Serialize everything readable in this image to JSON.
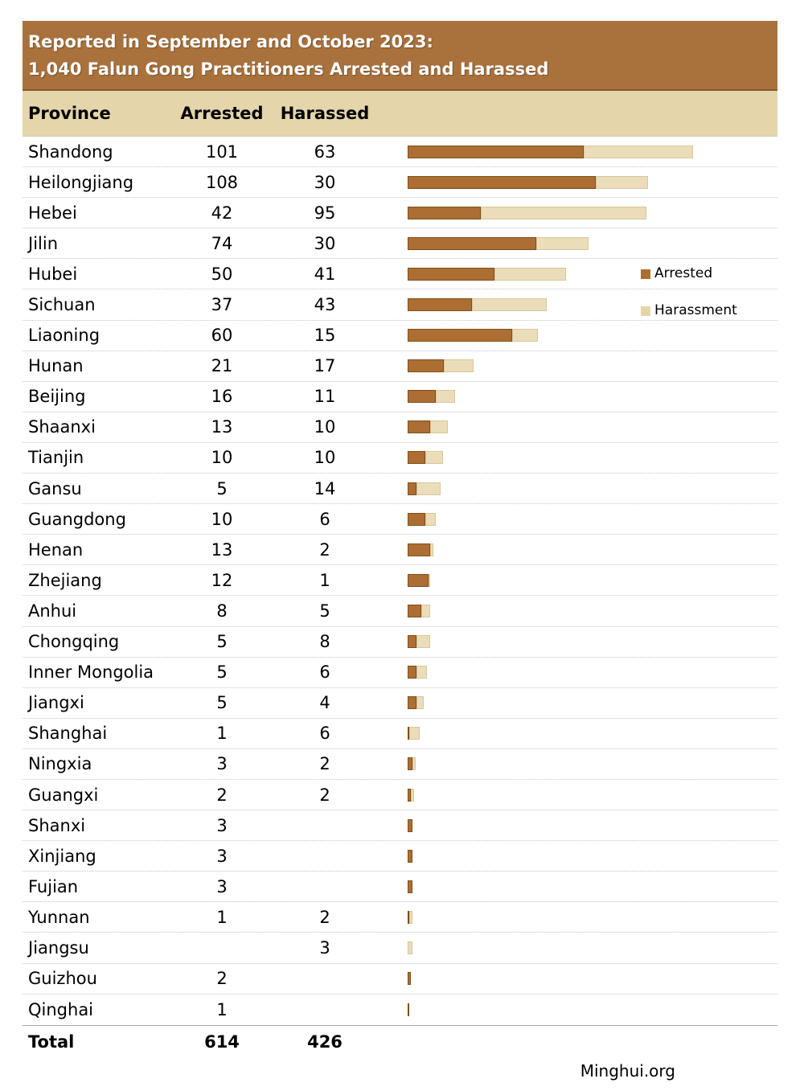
{
  "title": {
    "line1": "Reported in September and October 2023:",
    "line2": "1,040 Falun Gong Practitioners Arrested and Harassed"
  },
  "columns": {
    "province": "Province",
    "arrested": "Arrested",
    "harassed": "Harassed"
  },
  "legend": {
    "arrested": "Arrested",
    "harassment": "Harassment"
  },
  "total": {
    "label": "Total",
    "arrested": "614",
    "harassed": "426"
  },
  "footer": {
    "source": "Minghui.org"
  },
  "colors": {
    "header_bg": "#A9713C",
    "header_border": "#8A5C2A",
    "band_bg": "#E4D5AA",
    "title_text": "#FFFFFF",
    "arrested": "#AC6E33",
    "arrested_border": "#7E4F1D",
    "harassment": "#EBDDB9",
    "harassment_border": "#D8C69B"
  },
  "chart_data": {
    "type": "bar",
    "orientation": "horizontal",
    "stacked": true,
    "grid": "dotted-row-separators",
    "legend_position": "right-inside",
    "title": "Reported in September and October 2023: 1,040 Falun Gong Practitioners Arrested and Harassed",
    "categories": [
      "Shandong",
      "Heilongjiang",
      "Hebei",
      "Jilin",
      "Hubei",
      "Sichuan",
      "Liaoning",
      "Hunan",
      "Beijing",
      "Shaanxi",
      "Tianjin",
      "Gansu",
      "Guangdong",
      "Henan",
      "Zhejiang",
      "Anhui",
      "Chongqing",
      "Inner Mongolia",
      "Jiangxi",
      "Shanghai",
      "Ningxia",
      "Guangxi",
      "Shanxi",
      "Xinjiang",
      "Fujian",
      "Yunnan",
      "Jiangsu",
      "Guizhou",
      "Qinghai"
    ],
    "series": [
      {
        "name": "Arrested",
        "values": [
          101,
          108,
          42,
          74,
          50,
          37,
          60,
          21,
          16,
          13,
          10,
          5,
          10,
          13,
          12,
          8,
          5,
          5,
          5,
          1,
          3,
          2,
          3,
          3,
          3,
          1,
          null,
          2,
          1
        ]
      },
      {
        "name": "Harassment",
        "values": [
          63,
          30,
          95,
          30,
          41,
          43,
          15,
          17,
          11,
          10,
          10,
          14,
          6,
          2,
          1,
          5,
          8,
          6,
          4,
          6,
          2,
          2,
          null,
          null,
          null,
          2,
          3,
          null,
          null
        ]
      }
    ],
    "totals": {
      "arrested": 614,
      "harassed": 426,
      "overall": 1040
    }
  }
}
